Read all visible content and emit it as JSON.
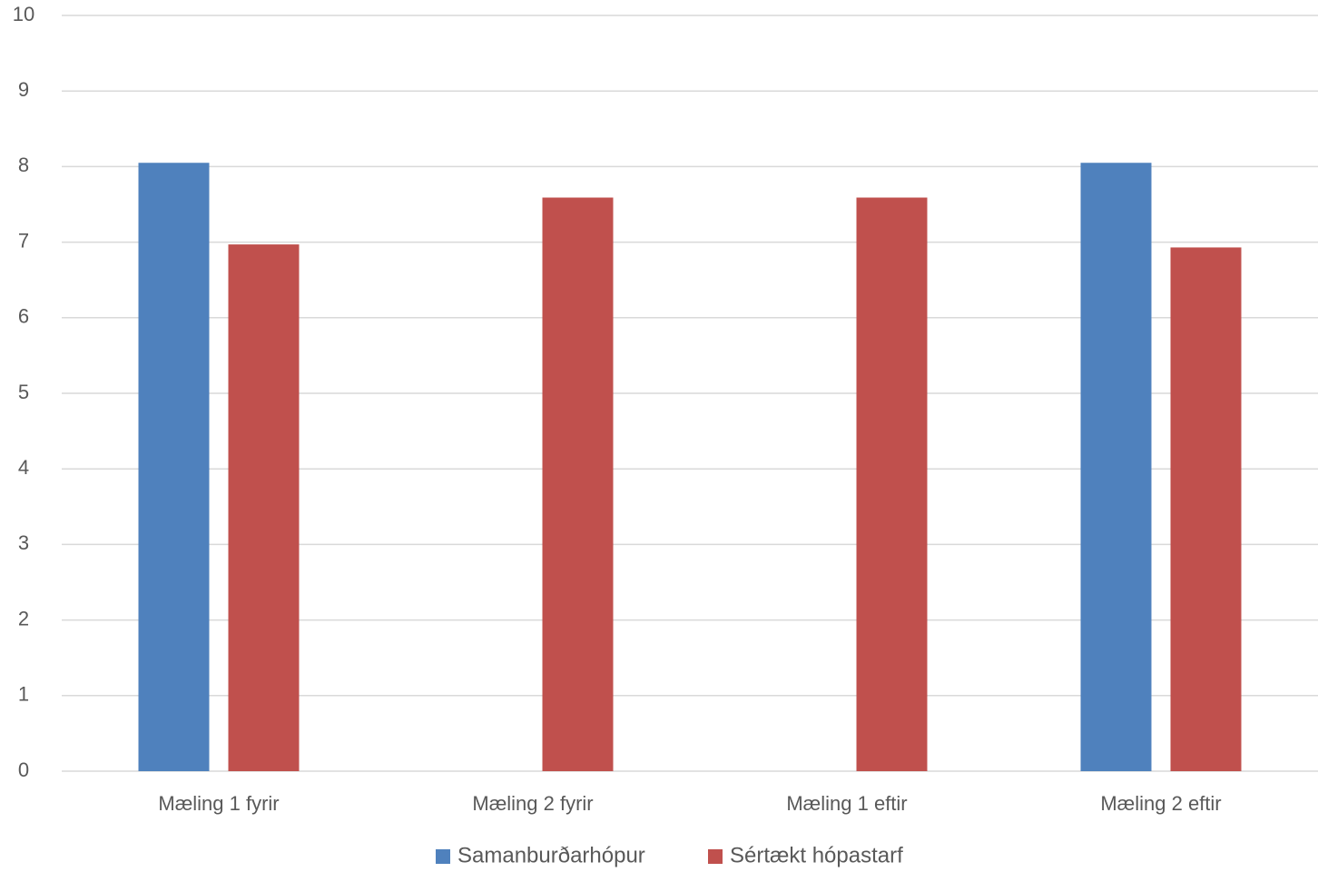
{
  "chart_data": {
    "type": "bar",
    "categories": [
      "Mæling 1 fyrir",
      "Mæling 2 fyrir",
      "Mæling 1 eftir",
      "Mæling 2 eftir"
    ],
    "series": [
      {
        "name": "Samanburðarhópur",
        "color": "#4f81bd",
        "values": [
          8.05,
          null,
          null,
          8.05
        ]
      },
      {
        "name": "Sértækt hópastarf",
        "color": "#c0504d",
        "values": [
          6.97,
          7.59,
          7.59,
          6.93
        ]
      }
    ],
    "ylim": [
      0,
      10
    ],
    "yticks": [
      "0",
      "1",
      "2",
      "3",
      "4",
      "5",
      "6",
      "7",
      "8",
      "9",
      "10"
    ],
    "grid": true,
    "legend_position": "bottom",
    "gridline_color": "#d9d9d9"
  }
}
